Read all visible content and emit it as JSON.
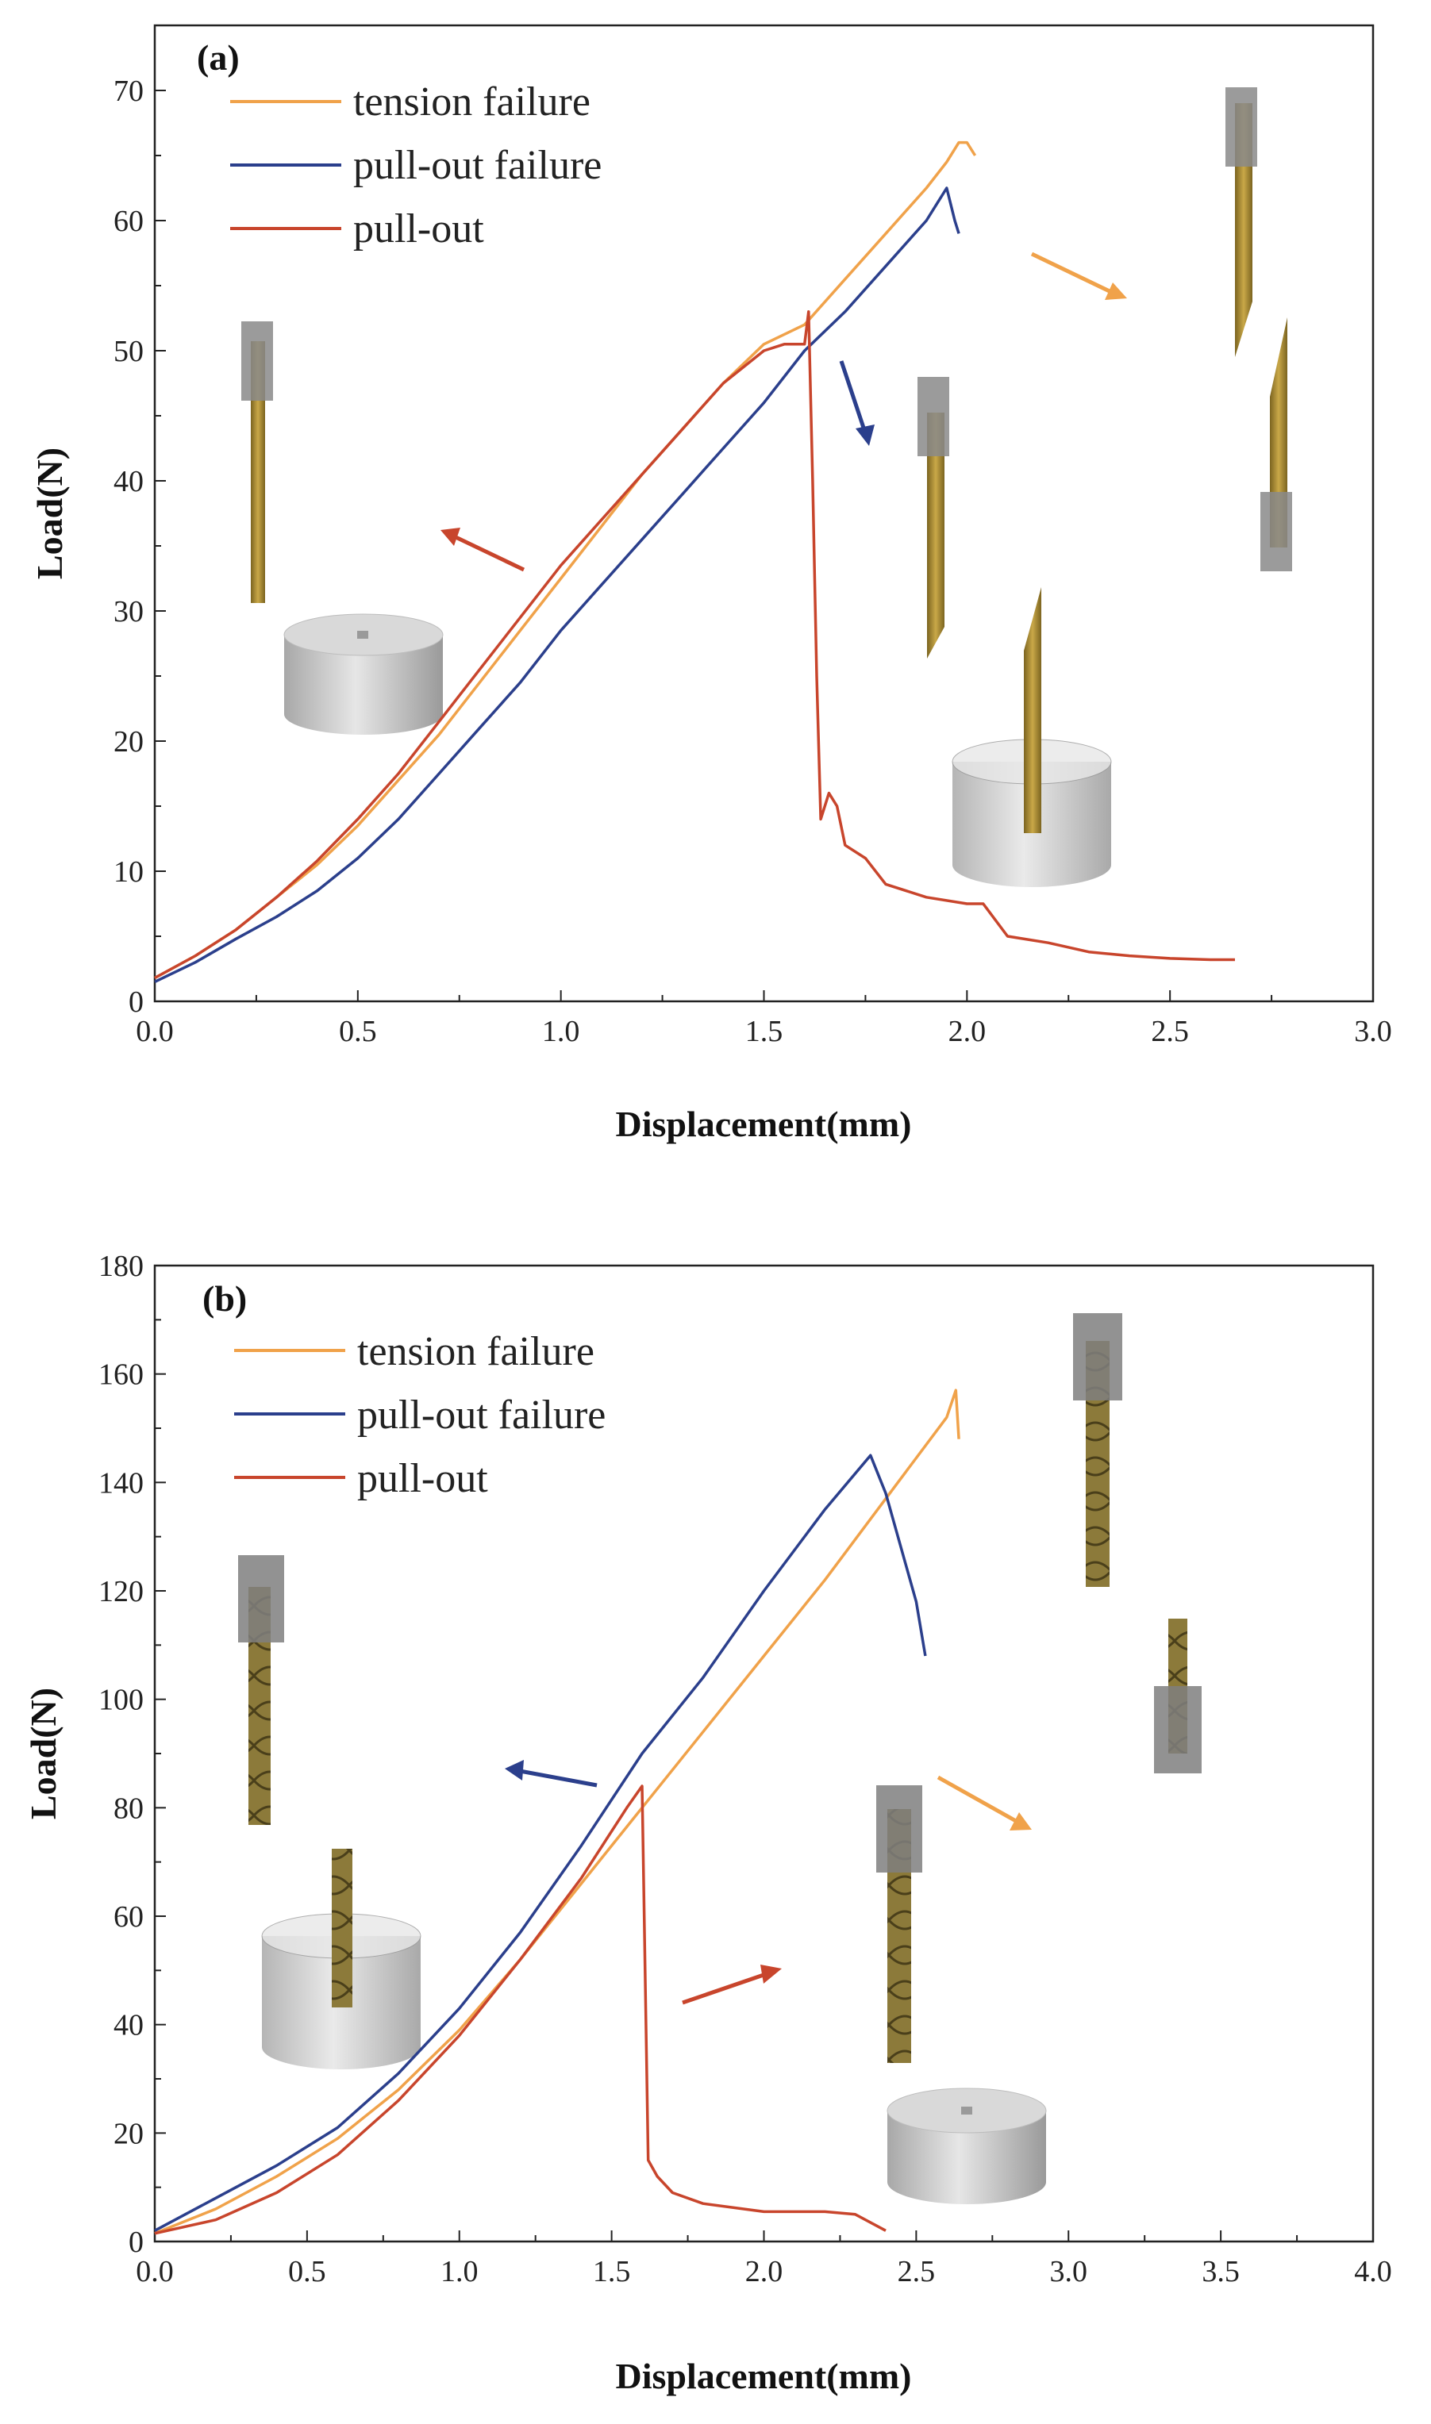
{
  "colors": {
    "tension_failure": "#f0a24a",
    "pullout_failure": "#2b3f8c",
    "pullout": "#c8452c"
  },
  "chart_data": [
    {
      "type": "line",
      "panel_label": "(a)",
      "xlabel": "Displacement(mm)",
      "ylabel": "Load(N)",
      "xlim": [
        0,
        3.0
      ],
      "ylim": [
        0,
        75
      ],
      "xticks": [
        "0.0",
        "0.5",
        "1.0",
        "1.5",
        "2.0",
        "2.5",
        "3.0"
      ],
      "yticks": [
        "0",
        "10",
        "20",
        "30",
        "40",
        "50",
        "60",
        "70"
      ],
      "grid": false,
      "legend_position": "top-left",
      "series": [
        {
          "name": "tension failure",
          "color_key": "tension_failure",
          "points": [
            [
              0,
              1.8
            ],
            [
              0.1,
              3.5
            ],
            [
              0.2,
              5.5
            ],
            [
              0.3,
              8
            ],
            [
              0.4,
              10.5
            ],
            [
              0.5,
              13.5
            ],
            [
              0.6,
              17
            ],
            [
              0.7,
              20.5
            ],
            [
              0.8,
              24.5
            ],
            [
              0.9,
              28.5
            ],
            [
              1.0,
              32.5
            ],
            [
              1.1,
              36.5
            ],
            [
              1.2,
              40.5
            ],
            [
              1.3,
              44
            ],
            [
              1.4,
              47.5
            ],
            [
              1.5,
              50.5
            ],
            [
              1.6,
              52
            ],
            [
              1.7,
              55.5
            ],
            [
              1.8,
              59
            ],
            [
              1.9,
              62.5
            ],
            [
              1.95,
              64.5
            ],
            [
              1.98,
              66
            ],
            [
              2.0,
              66
            ],
            [
              2.02,
              65
            ]
          ]
        },
        {
          "name": "pull-out failure",
          "color_key": "pullout_failure",
          "points": [
            [
              0,
              1.5
            ],
            [
              0.1,
              3
            ],
            [
              0.2,
              4.8
            ],
            [
              0.3,
              6.5
            ],
            [
              0.4,
              8.5
            ],
            [
              0.5,
              11
            ],
            [
              0.6,
              14
            ],
            [
              0.7,
              17.5
            ],
            [
              0.8,
              21
            ],
            [
              0.9,
              24.5
            ],
            [
              1.0,
              28.5
            ],
            [
              1.1,
              32
            ],
            [
              1.2,
              35.5
            ],
            [
              1.3,
              39
            ],
            [
              1.4,
              42.5
            ],
            [
              1.5,
              46
            ],
            [
              1.6,
              50
            ],
            [
              1.7,
              53
            ],
            [
              1.8,
              56.5
            ],
            [
              1.9,
              60
            ],
            [
              1.95,
              62.5
            ],
            [
              1.97,
              60
            ],
            [
              1.98,
              59
            ]
          ]
        },
        {
          "name": "pull-out",
          "color_key": "pullout",
          "points": [
            [
              0,
              1.8
            ],
            [
              0.1,
              3.5
            ],
            [
              0.2,
              5.5
            ],
            [
              0.3,
              8
            ],
            [
              0.4,
              10.8
            ],
            [
              0.5,
              14
            ],
            [
              0.6,
              17.5
            ],
            [
              0.7,
              21.5
            ],
            [
              0.8,
              25.5
            ],
            [
              0.9,
              29.5
            ],
            [
              1.0,
              33.5
            ],
            [
              1.1,
              37
            ],
            [
              1.2,
              40.5
            ],
            [
              1.3,
              44
            ],
            [
              1.4,
              47.5
            ],
            [
              1.5,
              50
            ],
            [
              1.55,
              50.5
            ],
            [
              1.6,
              50.5
            ],
            [
              1.61,
              53
            ],
            [
              1.62,
              40
            ],
            [
              1.63,
              25
            ],
            [
              1.64,
              14
            ],
            [
              1.66,
              16
            ],
            [
              1.68,
              15
            ],
            [
              1.7,
              12
            ],
            [
              1.75,
              11
            ],
            [
              1.8,
              9
            ],
            [
              1.9,
              8
            ],
            [
              2.0,
              7.5
            ],
            [
              2.04,
              7.5
            ],
            [
              2.1,
              5
            ],
            [
              2.2,
              4.5
            ],
            [
              2.3,
              3.8
            ],
            [
              2.4,
              3.5
            ],
            [
              2.5,
              3.3
            ],
            [
              2.6,
              3.2
            ],
            [
              2.66,
              3.2
            ]
          ]
        }
      ]
    },
    {
      "type": "line",
      "panel_label": "(b)",
      "xlabel": "Displacement(mm)",
      "ylabel": "Load(N)",
      "xlim": [
        0,
        4.0
      ],
      "ylim": [
        0,
        180
      ],
      "xticks": [
        "0.0",
        "0.5",
        "1.0",
        "1.5",
        "2.0",
        "2.5",
        "3.0",
        "3.5",
        "4.0"
      ],
      "yticks": [
        "0",
        "20",
        "40",
        "60",
        "80",
        "100",
        "120",
        "140",
        "160",
        "180"
      ],
      "grid": false,
      "legend_position": "top-left",
      "series": [
        {
          "name": "tension failure",
          "color_key": "tension_failure",
          "points": [
            [
              0,
              1.5
            ],
            [
              0.2,
              6
            ],
            [
              0.4,
              12
            ],
            [
              0.6,
              19
            ],
            [
              0.8,
              28
            ],
            [
              1.0,
              39
            ],
            [
              1.2,
              52
            ],
            [
              1.4,
              66
            ],
            [
              1.6,
              80
            ],
            [
              1.8,
              94
            ],
            [
              2.0,
              108
            ],
            [
              2.2,
              122
            ],
            [
              2.4,
              137
            ],
            [
              2.6,
              152
            ],
            [
              2.63,
              157
            ],
            [
              2.64,
              148
            ]
          ]
        },
        {
          "name": "pull-out failure",
          "color_key": "pullout_failure",
          "points": [
            [
              0,
              2
            ],
            [
              0.2,
              8
            ],
            [
              0.4,
              14
            ],
            [
              0.6,
              21
            ],
            [
              0.8,
              31
            ],
            [
              1.0,
              43
            ],
            [
              1.2,
              57
            ],
            [
              1.4,
              73
            ],
            [
              1.6,
              90
            ],
            [
              1.8,
              104
            ],
            [
              2.0,
              120
            ],
            [
              2.2,
              135
            ],
            [
              2.35,
              145
            ],
            [
              2.4,
              138
            ],
            [
              2.5,
              118
            ],
            [
              2.53,
              108
            ]
          ]
        },
        {
          "name": "pull-out",
          "color_key": "pullout",
          "points": [
            [
              0,
              1.5
            ],
            [
              0.2,
              4
            ],
            [
              0.4,
              9
            ],
            [
              0.6,
              16
            ],
            [
              0.8,
              26
            ],
            [
              1.0,
              38
            ],
            [
              1.2,
              52
            ],
            [
              1.4,
              67
            ],
            [
              1.55,
              80
            ],
            [
              1.6,
              84
            ],
            [
              1.61,
              50
            ],
            [
              1.62,
              15
            ],
            [
              1.65,
              12
            ],
            [
              1.7,
              9
            ],
            [
              1.8,
              7
            ],
            [
              2.0,
              5.5
            ],
            [
              2.2,
              5.5
            ],
            [
              2.3,
              5
            ],
            [
              2.4,
              2
            ]
          ]
        }
      ]
    }
  ]
}
